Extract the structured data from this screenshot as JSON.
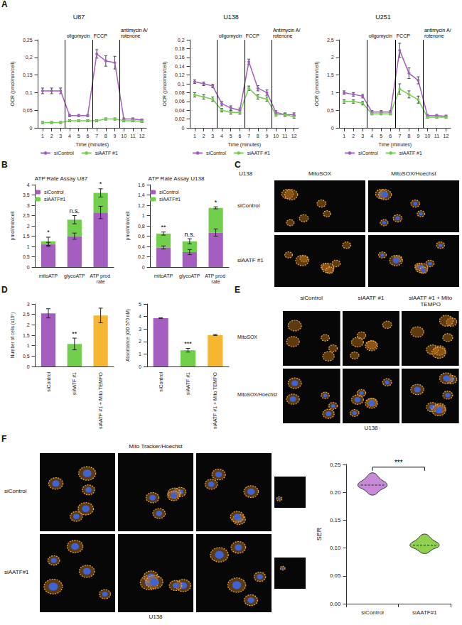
{
  "chart_data": [
    {
      "panel": "A",
      "type": "line",
      "title": "U87",
      "x_label": "Time (minutes)",
      "y_label": "OCR (pmol/min/cell)",
      "x": [
        1,
        2,
        3,
        4,
        5,
        6,
        7,
        8,
        9,
        10,
        11,
        12
      ],
      "xlim": [
        0.5,
        12.5
      ],
      "xticks": [
        1,
        2,
        3,
        4,
        5,
        6,
        7,
        8,
        9,
        10,
        11,
        12
      ],
      "ylim": [
        0,
        0.25
      ],
      "yticks": [
        0,
        {
          "value": 0.05,
          "label": "0,05"
        },
        {
          "value": 0.1,
          "label": "0,1"
        },
        {
          "value": 0.15,
          "label": "0,15"
        },
        {
          "value": 0.2,
          "label": "0,2"
        },
        {
          "value": 0.25,
          "label": "0,25"
        }
      ],
      "annotations": [
        {
          "x": 3.5,
          "label": "oligomycin"
        },
        {
          "x": 6.5,
          "label": "FCCP"
        },
        {
          "x": 9.5,
          "label": "antimycin A/ rotenone"
        }
      ],
      "marker": "circle",
      "line_style": "solid",
      "legend": "bottom",
      "grid": false,
      "series": [
        {
          "name": "siControl",
          "color": "#a45ec0",
          "values": [
            0.105,
            0.105,
            0.105,
            0.035,
            0.035,
            0.035,
            0.21,
            0.19,
            0.185,
            0.025,
            0.025,
            0.022
          ],
          "errors": [
            0.008,
            0.008,
            0.008,
            0.003,
            0.003,
            0.003,
            0.012,
            0.015,
            0.018,
            0.003,
            0.003,
            0.003
          ]
        },
        {
          "name": "siAATF #1",
          "color": "#72cf4c",
          "values": [
            0.015,
            0.015,
            0.015,
            0.02,
            0.02,
            0.02,
            0.02,
            0.025,
            0.025,
            0.02,
            0.02,
            0.018
          ],
          "errors": [
            0.003,
            0.003,
            0.003,
            0.003,
            0.003,
            0.003,
            0.003,
            0.003,
            0.003,
            0.003,
            0.003,
            0.003
          ]
        }
      ]
    },
    {
      "type": "line",
      "title": "U138",
      "x_label": "Time (minutes)",
      "y_label": "OCR (pmol/min/cell)",
      "x": [
        1,
        2,
        3,
        4,
        5,
        6,
        7,
        8,
        9,
        10,
        11,
        12
      ],
      "xlim": [
        0.5,
        12.5
      ],
      "xticks": [
        1,
        2,
        3,
        4,
        5,
        6,
        7,
        8,
        9,
        10,
        11,
        12
      ],
      "ylim": [
        0,
        0.2
      ],
      "yticks": [
        0,
        {
          "value": 0.02,
          "label": "0,02"
        },
        {
          "value": 0.04,
          "label": "0,04"
        },
        {
          "value": 0.06,
          "label": "0,06"
        },
        {
          "value": 0.08,
          "label": "0,08"
        },
        {
          "value": 0.1,
          "label": "0,1"
        },
        {
          "value": 0.12,
          "label": "0,12"
        },
        {
          "value": 0.14,
          "label": "0,14"
        },
        {
          "value": 0.16,
          "label": "0,16"
        },
        {
          "value": 0.18,
          "label": "0,18"
        },
        {
          "value": 0.2,
          "label": "0,2"
        }
      ],
      "annotations": [
        {
          "x": 3.5,
          "label": "oligomycin"
        },
        {
          "x": 6.5,
          "label": "FCCP"
        },
        {
          "x": 9.5,
          "label": "Antimycin A/ rotenone"
        }
      ],
      "marker": "circle",
      "line_style": "solid",
      "legend": "bottom",
      "grid": false,
      "series": [
        {
          "name": "siControl",
          "color": "#a45ec0",
          "values": [
            0.105,
            0.1,
            0.095,
            0.055,
            0.045,
            0.04,
            0.15,
            0.09,
            0.08,
            0.035,
            0.03,
            0.03
          ],
          "errors": [
            0.004,
            0.004,
            0.004,
            0.005,
            0.005,
            0.005,
            0.006,
            0.006,
            0.006,
            0.004,
            0.004,
            0.004
          ]
        },
        {
          "name": "siAATF #1",
          "color": "#72cf4c",
          "values": [
            0.075,
            0.07,
            0.065,
            0.04,
            0.035,
            0.035,
            0.09,
            0.07,
            0.065,
            0.03,
            0.03,
            0.025
          ],
          "errors": [
            0.005,
            0.005,
            0.005,
            0.004,
            0.004,
            0.004,
            0.005,
            0.005,
            0.005,
            0.003,
            0.003,
            0.003
          ]
        }
      ]
    },
    {
      "type": "line",
      "title": "U251",
      "x_label": "Time (minutes)",
      "y_label": "OCR (pmol/min/cell)",
      "x": [
        1,
        2,
        3,
        4,
        5,
        6,
        7,
        8,
        9,
        10,
        11,
        12
      ],
      "xlim": [
        0.5,
        12.5
      ],
      "xticks": [
        1,
        2,
        3,
        4,
        5,
        6,
        7,
        8,
        9,
        10,
        11,
        12
      ],
      "ylim": [
        0,
        2.5
      ],
      "yticks": [
        0,
        {
          "value": 0.5,
          "label": "0,5"
        },
        1,
        {
          "value": 1.5,
          "label": "1,5"
        },
        2,
        {
          "value": 2.5,
          "label": "2,5"
        }
      ],
      "annotations": [
        {
          "x": 3.5,
          "label": "oligomycin"
        },
        {
          "x": 6.5,
          "label": "FCCP"
        },
        {
          "x": 9.5,
          "label": "antimycin A/ rotenone"
        }
      ],
      "marker": "circle",
      "line_style": "solid",
      "legend": "bottom",
      "grid": false,
      "series": [
        {
          "name": "siControl",
          "color": "#a45ec0",
          "values": [
            1.0,
            0.95,
            0.9,
            0.45,
            0.45,
            0.45,
            2.2,
            1.55,
            1.35,
            0.35,
            0.35,
            0.33
          ],
          "errors": [
            0.05,
            0.05,
            0.05,
            0.04,
            0.04,
            0.04,
            0.2,
            0.15,
            0.1,
            0.03,
            0.03,
            0.03
          ]
        },
        {
          "name": "siAATF #1",
          "color": "#72cf4c",
          "values": [
            0.75,
            0.75,
            0.7,
            0.4,
            0.4,
            0.4,
            1.1,
            0.95,
            0.8,
            0.3,
            0.3,
            0.3
          ],
          "errors": [
            0.05,
            0.05,
            0.05,
            0.03,
            0.03,
            0.03,
            0.15,
            0.1,
            0.1,
            0.03,
            0.03,
            0.03
          ]
        }
      ]
    },
    {
      "panel": "B",
      "type": "bar",
      "stacked": true,
      "title": "ATP Rate Assay U87",
      "y_label": "pmol/min/cell",
      "categories": [
        "mitoATP",
        "glycoATP",
        "ATP prod rate"
      ],
      "ylim": [
        0,
        4
      ],
      "yticks": [
        0,
        {
          "value": 0.5,
          "label": "0,5"
        },
        1,
        {
          "value": 1.5,
          "label": "1,5"
        },
        2,
        {
          "value": 2.5,
          "label": "2,5"
        },
        3,
        {
          "value": 3.5,
          "label": "3,5"
        },
        4
      ],
      "legend": "upper left",
      "grid": false,
      "significance": [
        "*",
        "n.s.",
        "*"
      ],
      "series": [
        {
          "name": "siControl",
          "color": "#a45ec0",
          "values": [
            1.1,
            1.5,
            2.65
          ],
          "errors": [
            0.1,
            0.15,
            0.3
          ]
        },
        {
          "name": "siAATF#1",
          "color": "#72cf4c",
          "values": [
            0.15,
            0.8,
            0.95
          ],
          "errors": [
            0.2,
            0.2,
            0.2
          ]
        }
      ]
    },
    {
      "type": "bar",
      "stacked": true,
      "title": "ATP Rate Assay U138",
      "y_label": "pmol/min/cell",
      "categories": [
        "mitoATP",
        "glycoATP",
        "ATP prod rate"
      ],
      "ylim": [
        0,
        1.6
      ],
      "yticks": [
        0,
        {
          "value": 0.2,
          "label": "0,2"
        },
        {
          "value": 0.4,
          "label": "0,4"
        },
        {
          "value": 0.6,
          "label": "0,6"
        },
        {
          "value": 0.8,
          "label": "0,8"
        },
        1,
        {
          "value": 1.2,
          "label": "1,2"
        },
        {
          "value": 1.4,
          "label": "1,4"
        },
        {
          "value": 1.6,
          "label": "1,6"
        }
      ],
      "legend": "upper left",
      "grid": false,
      "significance": [
        "**",
        "n.s.",
        "*"
      ],
      "series": [
        {
          "name": "siControl",
          "color": "#a45ec0",
          "values": [
            0.38,
            0.29,
            0.67
          ],
          "errors": [
            0.03,
            0.05,
            0.07
          ]
        },
        {
          "name": "siAATF#1",
          "color": "#72cf4c",
          "values": [
            0.27,
            0.21,
            0.48
          ],
          "errors": [
            0.03,
            0.05,
            0.02
          ]
        }
      ]
    },
    {
      "panel": "D",
      "type": "bar",
      "y_label": "Number of cells (x10⁵)",
      "categories": [
        "siControl",
        "siAATF #1",
        "siAATF #1 + Mito TEMPO"
      ],
      "values": [
        2.55,
        1.08,
        2.45
      ],
      "errors": [
        0.22,
        0.28,
        0.35
      ],
      "colors": [
        "#a45ec0",
        "#72cf4c",
        "#f5b731"
      ],
      "ylim": [
        0,
        3
      ],
      "yticks": [
        0,
        {
          "value": 0.5,
          "label": "0,5"
        },
        1,
        {
          "value": 1.5,
          "label": "1,5"
        },
        2,
        {
          "value": 2.5,
          "label": "2,5"
        },
        3
      ],
      "grid": false,
      "significance": [
        null,
        "**",
        null
      ]
    },
    {
      "type": "bar",
      "y_label": "Absorbance (OD 570 nM)",
      "categories": [
        "siControl",
        "siAATF #1",
        "siAATF #1 + Mito TEMPO"
      ],
      "values": [
        3.87,
        1.3,
        2.52
      ],
      "errors": [
        0.03,
        0.15,
        0.04
      ],
      "colors": [
        "#a45ec0",
        "#72cf4c",
        "#f5b731"
      ],
      "ylim": [
        0,
        5
      ],
      "yticks": [
        0,
        1,
        2,
        3,
        4,
        5
      ],
      "grid": false,
      "significance": [
        null,
        "***",
        null
      ]
    },
    {
      "type": "violin",
      "y_label": "SER",
      "categories": [
        "siControl",
        "siAATF#1"
      ],
      "colors": [
        "#c68ad8",
        "#8fd14f"
      ],
      "min": [
        0.195,
        0.09
      ],
      "median": [
        0.213,
        0.105
      ],
      "max": [
        0.235,
        0.125
      ],
      "ylim": [
        0,
        0.25
      ],
      "yticks": [
        {
          "value": 0,
          "label": "0.00"
        },
        {
          "value": 0.05,
          "label": "0.05"
        },
        {
          "value": 0.1,
          "label": "0.10"
        },
        {
          "value": 0.15,
          "label": "0.15"
        },
        {
          "value": 0.2,
          "label": "0.20"
        },
        {
          "value": 0.25,
          "label": "0.25"
        }
      ],
      "grid": false,
      "significance": "***"
    }
  ],
  "image_panels": [
    {
      "panel": "C",
      "title": "U138",
      "columns": [
        "MitoSOX",
        "MitoSOX/Hoechst"
      ],
      "rows": [
        "siControl",
        "siAATF #1"
      ]
    },
    {
      "panel": "E",
      "columns": [
        "siControl",
        "siAATF #1",
        "siAATF #1 + Mito TEMPO"
      ],
      "rows": [
        "MitoSOX",
        "MitoSOX/Hoechst"
      ],
      "caption": "U138"
    },
    {
      "panel": "F",
      "header": "Mito Tracker/Hoechst",
      "rows": [
        "siControl",
        "siAATF#1"
      ],
      "caption": "U138"
    }
  ]
}
